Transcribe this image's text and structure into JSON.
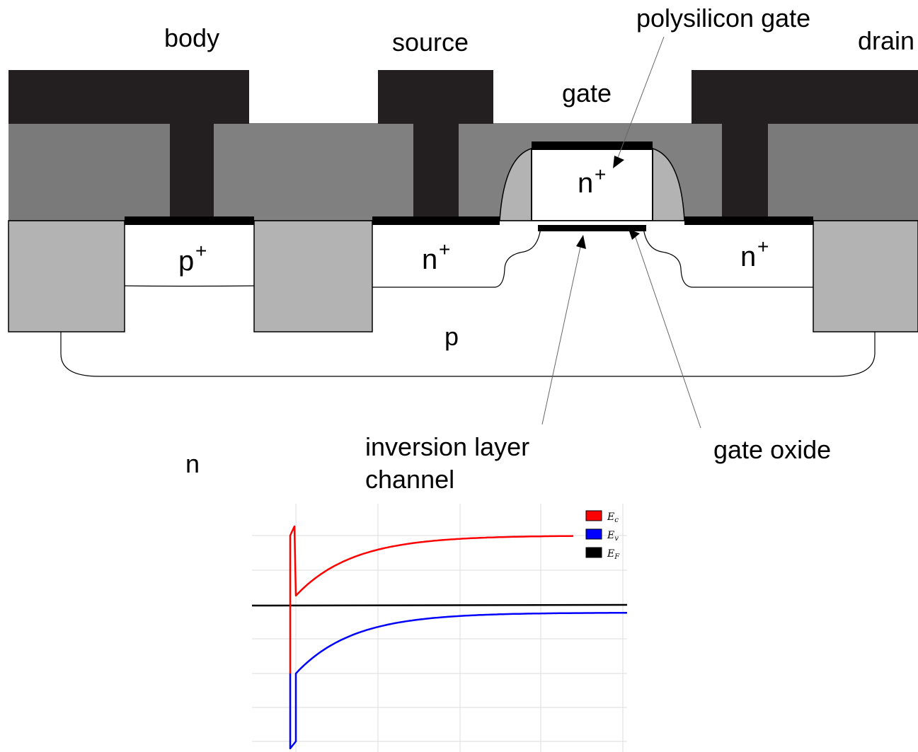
{
  "diagram": {
    "terminals": {
      "body": "body",
      "source": "source",
      "gate": "gate",
      "drain": "drain"
    },
    "callouts": {
      "polysilicon_gate": "polysilicon gate",
      "inversion_line1": "inversion layer",
      "inversion_line2": "channel",
      "gate_oxide": "gate oxide"
    },
    "regions": {
      "p_plus": "p",
      "p_plus_sup": "+",
      "n_plus_source": "n",
      "n_plus_source_sup": "+",
      "n_plus_drain": "n",
      "n_plus_drain_sup": "+",
      "n_plus_gate": "n",
      "n_plus_gate_sup": "+",
      "p_well": "p",
      "n_substrate": "n"
    },
    "colors": {
      "metal": "#231f20",
      "dielectric": "#808080",
      "isolation": "#b3b3b3",
      "silicon": "#ffffff",
      "oxide": "#000000"
    }
  },
  "chart_data": {
    "type": "line",
    "title": "",
    "xlabel": "",
    "ylabel": "",
    "grid": true,
    "legend_position": "top-right",
    "series": [
      {
        "name": "E",
        "sub": "c",
        "color": "#ff0000"
      },
      {
        "name": "E",
        "sub": "v",
        "color": "#0000ff"
      },
      {
        "name": "E",
        "sub": "F",
        "color": "#000000"
      }
    ]
  }
}
